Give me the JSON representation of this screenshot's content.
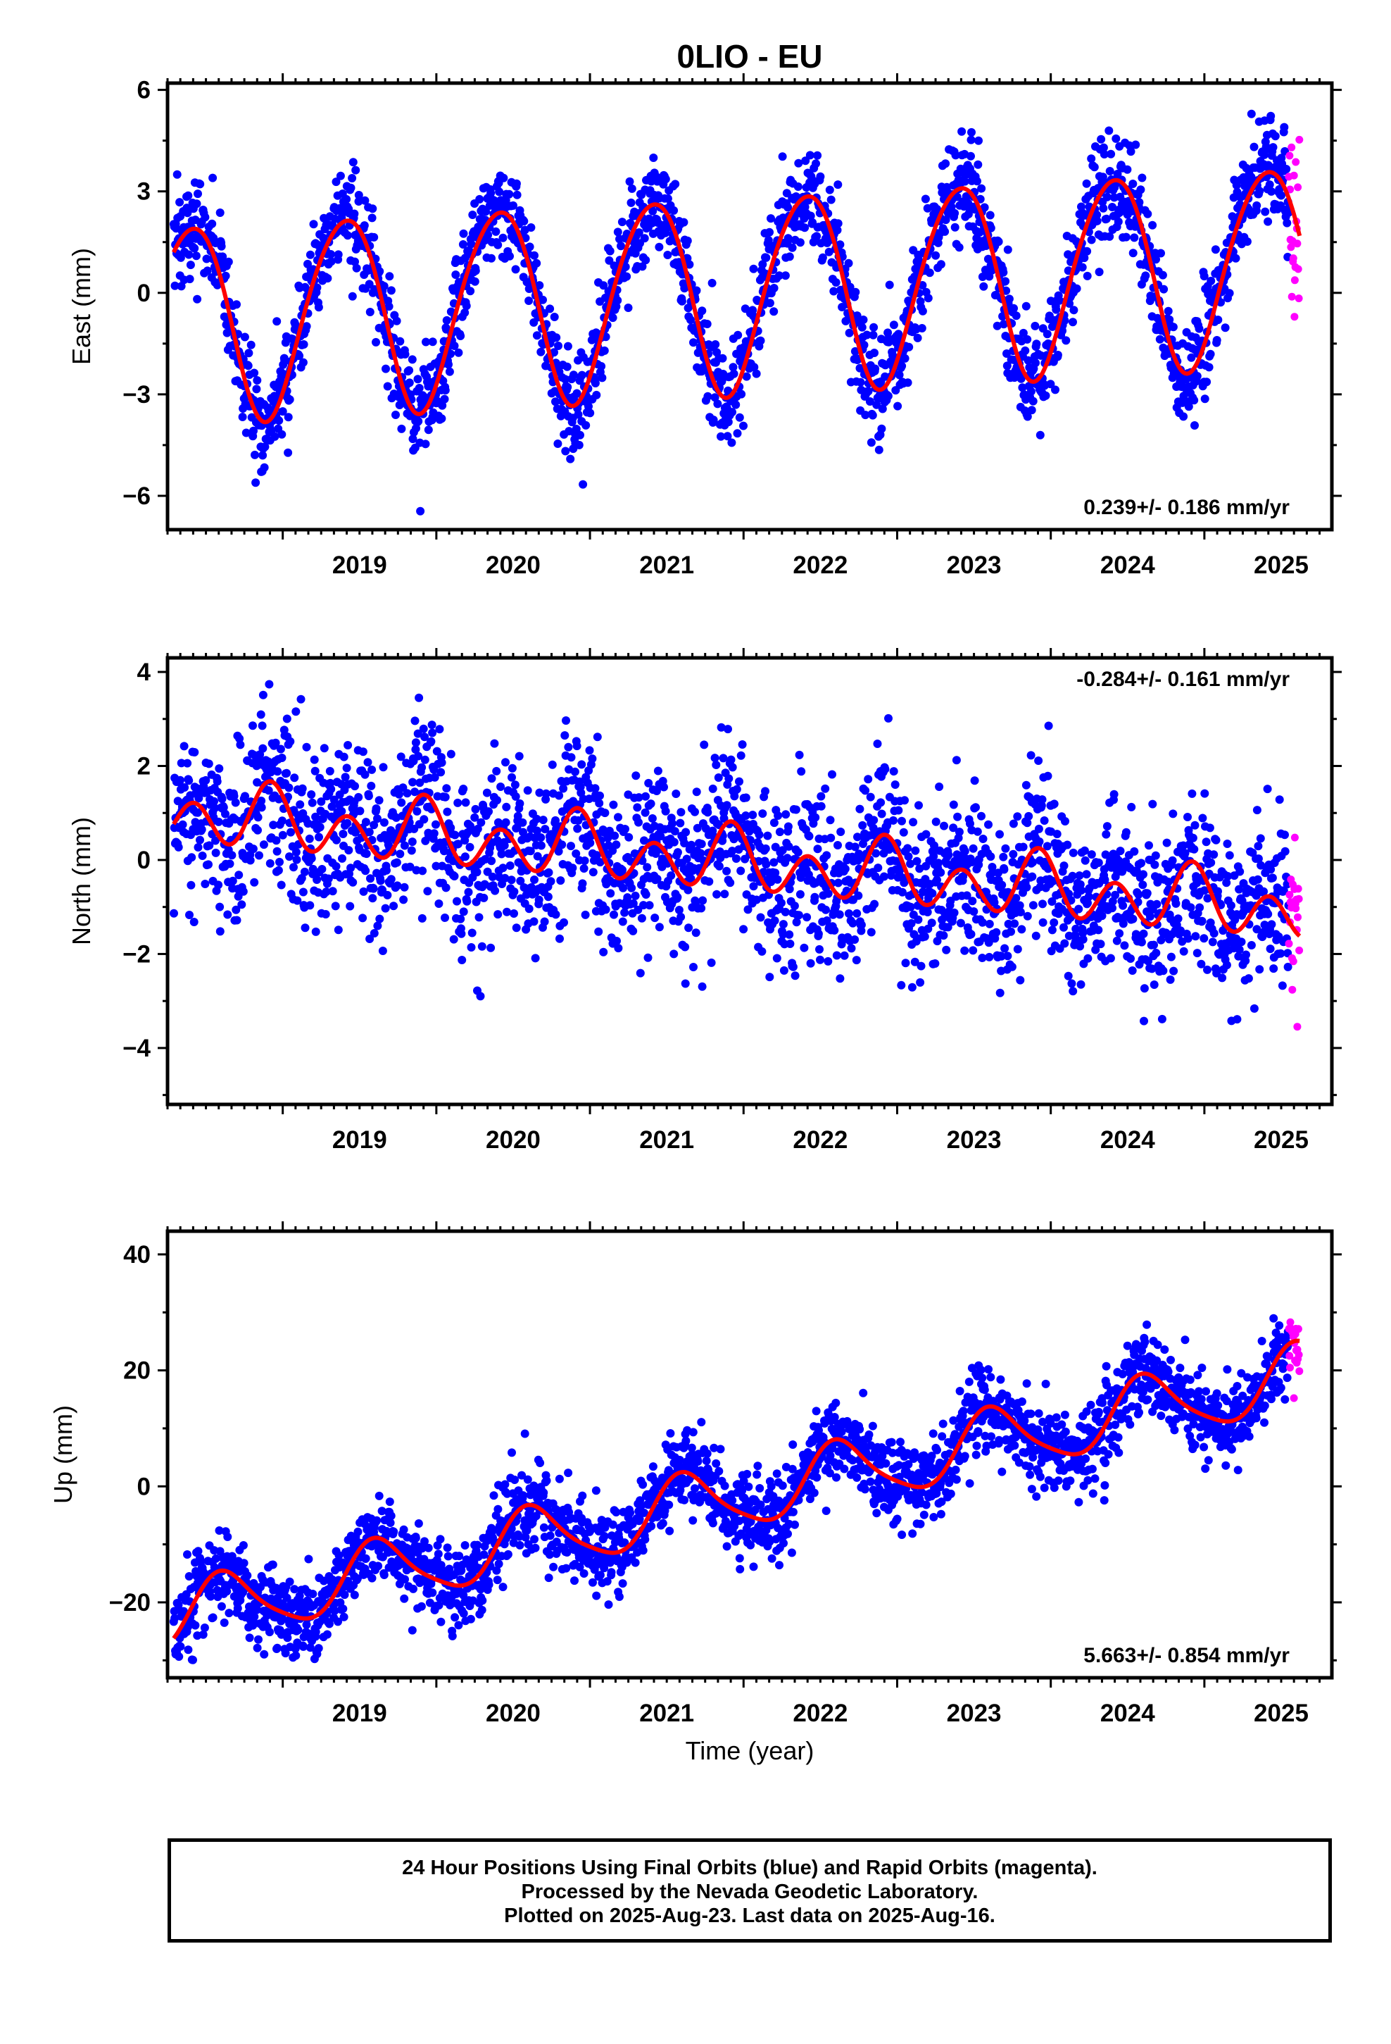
{
  "title": "0LIO - EU",
  "colors": {
    "final": "#0000ff",
    "rapid": "#ff00ff",
    "model": "#ff0000",
    "axis": "#000000"
  },
  "footer": {
    "line1": "24 Hour Positions Using Final Orbits (blue) and Rapid Orbits (magenta).",
    "line2": "Processed by the Nevada Geodetic Laboratory.",
    "line3": "Plotted on 2025-Aug-23. Last data on 2025-Aug-16."
  },
  "chart_data": [
    {
      "type": "scatter",
      "component": "east",
      "ylabel": "East (mm)",
      "xlabel": "",
      "xlim": [
        2018.25,
        2025.83
      ],
      "ylim": [
        -7.0,
        6.2
      ],
      "x_ticks": [
        "2019",
        "2020",
        "2021",
        "2022",
        "2023",
        "2024",
        "2025"
      ],
      "y_ticks": [
        -6,
        -3,
        0,
        3,
        6
      ],
      "y_tick_labels": [
        "−6",
        "−3",
        "0",
        "3",
        "6"
      ],
      "rate_label": "0.239+/- 0.186 mm/yr",
      "rate_position": "bottom-right",
      "model": {
        "trend": 0.239,
        "offset": -0.85,
        "annual_amp": 2.9,
        "annual_peak": 0.4,
        "semiannual_amp": 0.25,
        "semiannual_peak": 0.1
      },
      "scatter": {
        "final_sd": 0.75,
        "rapid_sd": 1.4
      },
      "series": [
        {
          "name": "Final Orbits",
          "color": "#0000ff",
          "x_start": 2018.29,
          "x_end": 2025.55
        },
        {
          "name": "Rapid Orbits",
          "color": "#ff00ff",
          "x_start": 2025.55,
          "x_end": 2025.62
        }
      ]
    },
    {
      "type": "scatter",
      "component": "north",
      "ylabel": "North (mm)",
      "xlabel": "",
      "xlim": [
        2018.25,
        2025.83
      ],
      "ylim": [
        -5.2,
        4.3
      ],
      "x_ticks": [
        "2019",
        "2020",
        "2021",
        "2022",
        "2023",
        "2024",
        "2025"
      ],
      "y_ticks": [
        -4,
        -2,
        0,
        2,
        4
      ],
      "y_tick_labels": [
        "−4",
        "−2",
        "0",
        "2",
        "4"
      ],
      "rate_label": "-0.284+/- 0.161 mm/yr",
      "rate_position": "top-right",
      "model": {
        "trend": -0.284,
        "offset": 1.0,
        "annual_amp": 0.3,
        "annual_peak": 0.92,
        "semiannual_amp": 0.55,
        "semiannual_peak": 0.42
      },
      "scatter": {
        "final_sd": 0.9,
        "rapid_sd": 1.1
      },
      "series": [
        {
          "name": "Final Orbits",
          "color": "#0000ff",
          "x_start": 2018.29,
          "x_end": 2025.55
        },
        {
          "name": "Rapid Orbits",
          "color": "#ff00ff",
          "x_start": 2025.55,
          "x_end": 2025.62
        }
      ]
    },
    {
      "type": "scatter",
      "component": "up",
      "ylabel": "Up (mm)",
      "xlabel": "Time (year)",
      "xlim": [
        2018.25,
        2025.83
      ],
      "ylim": [
        -33,
        44
      ],
      "x_ticks": [
        "2019",
        "2020",
        "2021",
        "2022",
        "2023",
        "2024",
        "2025"
      ],
      "y_ticks": [
        -20,
        0,
        20,
        40
      ],
      "y_tick_labels": [
        "−20",
        "0",
        "20",
        "40"
      ],
      "rate_label": "5.663+/- 0.854 mm/yr",
      "rate_position": "bottom-right",
      "model": {
        "trend": 5.663,
        "offset": -22.5,
        "annual_amp": 5.5,
        "annual_peak": 0.62,
        "semiannual_amp": 1.0,
        "semiannual_peak": 0.55
      },
      "scatter": {
        "final_sd": 3.6,
        "rapid_sd": 4.0
      },
      "series": [
        {
          "name": "Final Orbits",
          "color": "#0000ff",
          "x_start": 2018.29,
          "x_end": 2025.55
        },
        {
          "name": "Rapid Orbits",
          "color": "#ff00ff",
          "x_start": 2025.55,
          "x_end": 2025.62
        }
      ]
    }
  ]
}
